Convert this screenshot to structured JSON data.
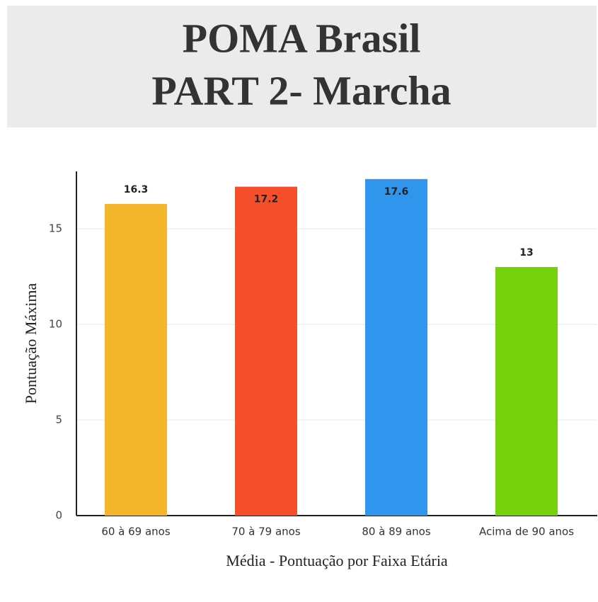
{
  "chart_data": {
    "type": "bar",
    "title": [
      "POMA Brasil",
      "PART 2- Marcha"
    ],
    "x_label": "Média - Pontuação por Faixa Etária",
    "y_label": "Pontuação Máxima",
    "categories": [
      "60 à 69 anos",
      "70 à 79 anos",
      "80 à 89 anos",
      "Acima de 90 anos"
    ],
    "values": [
      16.3,
      17.2,
      17.6,
      13
    ],
    "colors": [
      "#f4b62b",
      "#f54f2b",
      "#3095ec",
      "#75d10b"
    ],
    "ylim": [
      0,
      18
    ],
    "yticks": [
      0,
      5,
      10,
      15
    ],
    "grid": true
  }
}
